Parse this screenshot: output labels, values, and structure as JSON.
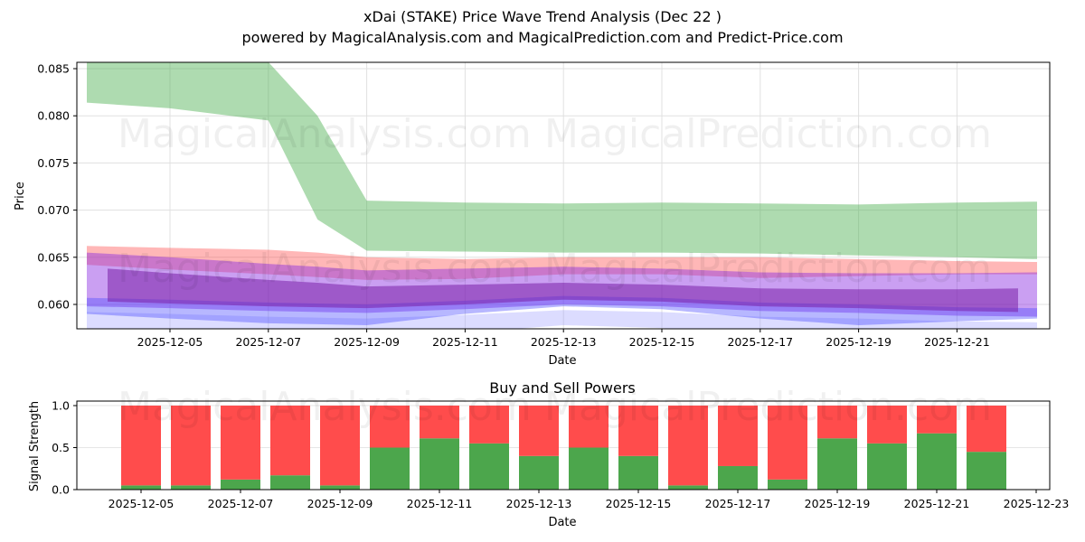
{
  "title": "xDai (STAKE) Price Wave Trend Analysis (Dec 22 )",
  "subtitle": "powered by MagicalAnalysis.com and MagicalPrediction.com and Predict-Price.com",
  "watermarks": [
    "MagicalAnalysis.com",
    "MagicalPrediction.com"
  ],
  "colors": {
    "green_band": "#4caf50",
    "red_band": "#ff4a4a",
    "blue_band": "#4a4aff",
    "purple_band": "#8a2be2",
    "buy": "#4ca64c",
    "sell": "#ff4c4c"
  },
  "chart_data": [
    {
      "type": "area",
      "title": "",
      "xlabel": "Date",
      "ylabel": "Price",
      "ylim": [
        0.0575,
        0.0857
      ],
      "yticks": [
        "0.060",
        "0.065",
        "0.070",
        "0.075",
        "0.080",
        "0.085"
      ],
      "xticks": [
        "2025-12-05",
        "2025-12-07",
        "2025-12-09",
        "2025-12-11",
        "2025-12-13",
        "2025-12-15",
        "2025-12-17",
        "2025-12-19",
        "2025-12-21"
      ],
      "grid": true,
      "x": [
        "2025-12-03",
        "2025-12-05",
        "2025-12-07",
        "2025-12-08",
        "2025-12-09",
        "2025-12-11",
        "2025-12-13",
        "2025-12-15",
        "2025-12-17",
        "2025-12-19",
        "2025-12-21",
        "2025-12-22"
      ],
      "series": [
        {
          "name": "green band upper",
          "values": [
            0.0857,
            0.0857,
            0.0857,
            0.08,
            0.071,
            0.0708,
            0.0707,
            0.0708,
            0.0707,
            0.0706,
            0.0708,
            0.0709
          ]
        },
        {
          "name": "green band lower",
          "values": [
            0.0814,
            0.0808,
            0.0795,
            0.069,
            0.0657,
            0.0656,
            0.0655,
            0.0655,
            0.0654,
            0.0652,
            0.065,
            0.0648
          ]
        },
        {
          "name": "red band upper",
          "values": [
            0.0662,
            0.066,
            0.0658,
            0.0655,
            0.065,
            0.0648,
            0.065,
            0.065,
            0.065,
            0.0648,
            0.0646,
            0.0645
          ]
        },
        {
          "name": "red band lower",
          "values": [
            0.065,
            0.0645,
            0.064,
            0.0637,
            0.0634,
            0.0635,
            0.064,
            0.064,
            0.0636,
            0.0638,
            0.064,
            0.064
          ]
        },
        {
          "name": "purple band upper",
          "values": [
            0.0655,
            0.065,
            0.0643,
            0.064,
            0.0636,
            0.0638,
            0.064,
            0.0638,
            0.0634,
            0.0633,
            0.0633,
            0.0634
          ]
        },
        {
          "name": "purple band lower",
          "values": [
            0.0595,
            0.0593,
            0.059,
            0.0589,
            0.0588,
            0.0592,
            0.0597,
            0.0595,
            0.059,
            0.0588,
            0.0585,
            0.0584
          ]
        },
        {
          "name": "blue band lower",
          "values": [
            0.059,
            0.0585,
            0.058,
            0.0579,
            0.0578,
            0.059,
            0.0598,
            0.0595,
            0.0585,
            0.0578,
            0.0582,
            0.0585
          ]
        }
      ]
    },
    {
      "type": "bar",
      "title": "Buy and Sell Powers",
      "xlabel": "Date",
      "ylabel": "Signal Strength",
      "ylim": [
        0,
        1.05
      ],
      "yticks": [
        "0.0",
        "0.5",
        "1.0"
      ],
      "xticks": [
        "2025-12-05",
        "2025-12-07",
        "2025-12-09",
        "2025-12-11",
        "2025-12-13",
        "2025-12-15",
        "2025-12-17",
        "2025-12-19",
        "2025-12-21",
        "2025-12-23"
      ],
      "grid": true,
      "categories": [
        "2025-12-05",
        "2025-12-06",
        "2025-12-07",
        "2025-12-08",
        "2025-12-09",
        "2025-12-10",
        "2025-12-11",
        "2025-12-12",
        "2025-12-13",
        "2025-12-14",
        "2025-12-15",
        "2025-12-16",
        "2025-12-17",
        "2025-12-18",
        "2025-12-19",
        "2025-12-20",
        "2025-12-21",
        "2025-12-22"
      ],
      "series": [
        {
          "name": "Buy",
          "values": [
            0.05,
            0.05,
            0.12,
            0.17,
            0.05,
            0.5,
            0.61,
            0.55,
            0.4,
            0.5,
            0.4,
            0.05,
            0.28,
            0.12,
            0.61,
            0.55,
            0.67,
            0.45
          ]
        },
        {
          "name": "Sell",
          "values": [
            0.95,
            0.95,
            0.88,
            0.83,
            0.95,
            0.5,
            0.39,
            0.45,
            0.6,
            0.5,
            0.6,
            0.95,
            0.72,
            0.88,
            0.39,
            0.45,
            0.33,
            0.55
          ]
        }
      ]
    }
  ]
}
